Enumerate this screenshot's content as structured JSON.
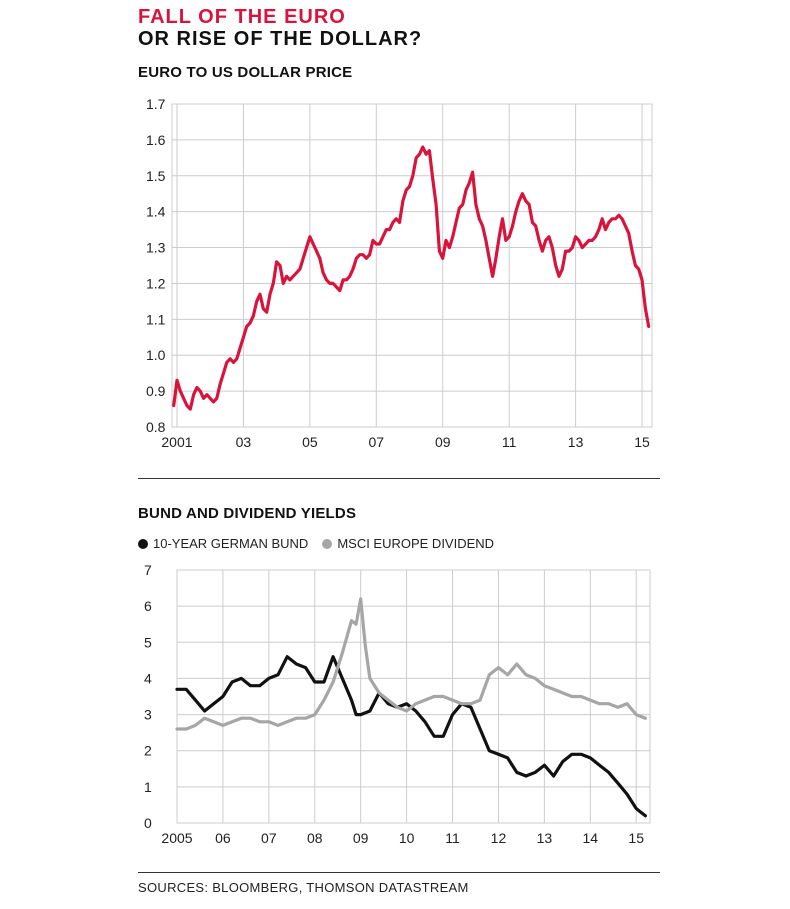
{
  "header": {
    "title_line1": "FALL OF THE EURO",
    "title_line2": "OR RISE OF THE DOLLAR?"
  },
  "sources": "SOURCES: BLOOMBERG, THOMSON DATASTREAM",
  "colors": {
    "euro_line": "#d9143c",
    "bund_line": "#111111",
    "dividend_line": "#a6a6a6",
    "grid": "#cccccc"
  },
  "chart_data": [
    {
      "type": "line",
      "title": "EURO TO US DOLLAR PRICE",
      "xlabel": "",
      "ylabel": "",
      "ylim": [
        0.8,
        1.7
      ],
      "xlim": [
        2000.85,
        2015.3
      ],
      "yticks": [
        "1.7",
        "1.6",
        "1.5",
        "1.4",
        "1.3",
        "1.2",
        "1.1",
        "1.0",
        "0.9",
        "0.8"
      ],
      "xticks": [
        {
          "x": 2001,
          "label": "2001"
        },
        {
          "x": 2003,
          "label": "03"
        },
        {
          "x": 2005,
          "label": "05"
        },
        {
          "x": 2007,
          "label": "07"
        },
        {
          "x": 2009,
          "label": "09"
        },
        {
          "x": 2011,
          "label": "11"
        },
        {
          "x": 2013,
          "label": "13"
        },
        {
          "x": 2015,
          "label": "15"
        }
      ],
      "grid": true,
      "series": [
        {
          "x": [
            2000.9,
            2001.0,
            2001.1,
            2001.2,
            2001.3,
            2001.4,
            2001.5,
            2001.6,
            2001.7,
            2001.8,
            2001.9,
            2002.0,
            2002.1,
            2002.2,
            2002.3,
            2002.4,
            2002.5,
            2002.6,
            2002.7,
            2002.8,
            2002.9,
            2003.0,
            2003.1,
            2003.2,
            2003.3,
            2003.4,
            2003.5,
            2003.6,
            2003.7,
            2003.8,
            2003.9,
            2004.0,
            2004.1,
            2004.2,
            2004.3,
            2004.4,
            2004.5,
            2004.6,
            2004.7,
            2004.8,
            2004.9,
            2005.0,
            2005.1,
            2005.2,
            2005.3,
            2005.4,
            2005.5,
            2005.6,
            2005.7,
            2005.8,
            2005.9,
            2006.0,
            2006.1,
            2006.2,
            2006.3,
            2006.4,
            2006.5,
            2006.6,
            2006.7,
            2006.8,
            2006.9,
            2007.0,
            2007.1,
            2007.2,
            2007.3,
            2007.4,
            2007.5,
            2007.6,
            2007.7,
            2007.8,
            2007.9,
            2008.0,
            2008.1,
            2008.2,
            2008.3,
            2008.4,
            2008.5,
            2008.6,
            2008.7,
            2008.8,
            2008.9,
            2009.0,
            2009.1,
            2009.2,
            2009.3,
            2009.4,
            2009.5,
            2009.6,
            2009.7,
            2009.8,
            2009.9,
            2010.0,
            2010.1,
            2010.2,
            2010.3,
            2010.4,
            2010.5,
            2010.6,
            2010.7,
            2010.8,
            2010.9,
            2011.0,
            2011.1,
            2011.2,
            2011.3,
            2011.4,
            2011.5,
            2011.6,
            2011.7,
            2011.8,
            2011.9,
            2012.0,
            2012.1,
            2012.2,
            2012.3,
            2012.4,
            2012.5,
            2012.6,
            2012.7,
            2012.8,
            2012.9,
            2013.0,
            2013.1,
            2013.2,
            2013.3,
            2013.4,
            2013.5,
            2013.6,
            2013.7,
            2013.8,
            2013.9,
            2014.0,
            2014.1,
            2014.2,
            2014.3,
            2014.4,
            2014.5,
            2014.6,
            2014.7,
            2014.8,
            2014.9,
            2015.0,
            2015.1,
            2015.2
          ],
          "values": [
            0.86,
            0.93,
            0.9,
            0.88,
            0.86,
            0.85,
            0.89,
            0.91,
            0.9,
            0.88,
            0.89,
            0.88,
            0.87,
            0.88,
            0.92,
            0.95,
            0.98,
            0.99,
            0.98,
            0.99,
            1.02,
            1.05,
            1.08,
            1.09,
            1.11,
            1.15,
            1.17,
            1.13,
            1.12,
            1.17,
            1.2,
            1.26,
            1.25,
            1.2,
            1.22,
            1.21,
            1.22,
            1.23,
            1.24,
            1.27,
            1.3,
            1.33,
            1.31,
            1.29,
            1.27,
            1.23,
            1.21,
            1.2,
            1.2,
            1.19,
            1.18,
            1.21,
            1.21,
            1.22,
            1.24,
            1.27,
            1.28,
            1.28,
            1.27,
            1.28,
            1.32,
            1.31,
            1.31,
            1.33,
            1.35,
            1.35,
            1.37,
            1.38,
            1.37,
            1.43,
            1.46,
            1.47,
            1.5,
            1.55,
            1.56,
            1.58,
            1.56,
            1.57,
            1.49,
            1.42,
            1.29,
            1.27,
            1.32,
            1.3,
            1.33,
            1.37,
            1.41,
            1.42,
            1.46,
            1.48,
            1.51,
            1.42,
            1.38,
            1.36,
            1.32,
            1.27,
            1.22,
            1.27,
            1.33,
            1.38,
            1.32,
            1.33,
            1.36,
            1.4,
            1.43,
            1.45,
            1.43,
            1.42,
            1.37,
            1.36,
            1.32,
            1.29,
            1.32,
            1.33,
            1.3,
            1.25,
            1.22,
            1.24,
            1.29,
            1.29,
            1.3,
            1.33,
            1.32,
            1.3,
            1.31,
            1.32,
            1.32,
            1.33,
            1.35,
            1.38,
            1.35,
            1.37,
            1.38,
            1.38,
            1.39,
            1.38,
            1.36,
            1.34,
            1.29,
            1.25,
            1.24,
            1.21,
            1.13,
            1.08
          ]
        }
      ]
    },
    {
      "type": "line",
      "title": "BUND AND DIVIDEND YIELDS",
      "xlabel": "",
      "ylabel": "",
      "ylim": [
        0,
        7
      ],
      "xlim": [
        2005,
        2015.3
      ],
      "yticks": [
        "7",
        "6",
        "5",
        "4",
        "3",
        "2",
        "1",
        "0"
      ],
      "xticks": [
        {
          "x": 2005,
          "label": "2005"
        },
        {
          "x": 2006,
          "label": "06"
        },
        {
          "x": 2007,
          "label": "07"
        },
        {
          "x": 2008,
          "label": "08"
        },
        {
          "x": 2009,
          "label": "09"
        },
        {
          "x": 2010,
          "label": "10"
        },
        {
          "x": 2011,
          "label": "11"
        },
        {
          "x": 2012,
          "label": "12"
        },
        {
          "x": 2013,
          "label": "13"
        },
        {
          "x": 2014,
          "label": "14"
        },
        {
          "x": 2015,
          "label": "15"
        }
      ],
      "grid": true,
      "legend": "top-left",
      "series": [
        {
          "name": "10-YEAR GERMAN BUND",
          "x": [
            2005.0,
            2005.2,
            2005.4,
            2005.6,
            2005.8,
            2006.0,
            2006.2,
            2006.4,
            2006.6,
            2006.8,
            2007.0,
            2007.2,
            2007.4,
            2007.6,
            2007.8,
            2008.0,
            2008.2,
            2008.4,
            2008.6,
            2008.8,
            2008.9,
            2009.0,
            2009.2,
            2009.4,
            2009.6,
            2009.8,
            2010.0,
            2010.2,
            2010.4,
            2010.6,
            2010.8,
            2011.0,
            2011.2,
            2011.4,
            2011.6,
            2011.8,
            2012.0,
            2012.2,
            2012.4,
            2012.6,
            2012.8,
            2013.0,
            2013.2,
            2013.4,
            2013.6,
            2013.8,
            2014.0,
            2014.2,
            2014.4,
            2014.6,
            2014.8,
            2015.0,
            2015.1,
            2015.2
          ],
          "values": [
            3.7,
            3.7,
            3.4,
            3.1,
            3.3,
            3.5,
            3.9,
            4.0,
            3.8,
            3.8,
            4.0,
            4.1,
            4.6,
            4.4,
            4.3,
            3.9,
            3.9,
            4.6,
            4.0,
            3.4,
            3.0,
            3.0,
            3.1,
            3.6,
            3.3,
            3.2,
            3.3,
            3.1,
            2.8,
            2.4,
            2.4,
            3.0,
            3.3,
            3.2,
            2.6,
            2.0,
            1.9,
            1.8,
            1.4,
            1.3,
            1.4,
            1.6,
            1.3,
            1.7,
            1.9,
            1.9,
            1.8,
            1.6,
            1.4,
            1.1,
            0.8,
            0.4,
            0.3,
            0.2
          ]
        },
        {
          "name": "MSCI EUROPE DIVIDEND",
          "x": [
            2005.0,
            2005.2,
            2005.4,
            2005.6,
            2005.8,
            2006.0,
            2006.2,
            2006.4,
            2006.6,
            2006.8,
            2007.0,
            2007.2,
            2007.4,
            2007.6,
            2007.8,
            2008.0,
            2008.2,
            2008.4,
            2008.6,
            2008.8,
            2008.9,
            2009.0,
            2009.1,
            2009.2,
            2009.4,
            2009.6,
            2009.8,
            2010.0,
            2010.2,
            2010.4,
            2010.6,
            2010.8,
            2011.0,
            2011.2,
            2011.4,
            2011.6,
            2011.8,
            2012.0,
            2012.2,
            2012.4,
            2012.6,
            2012.8,
            2013.0,
            2013.2,
            2013.4,
            2013.6,
            2013.8,
            2014.0,
            2014.2,
            2014.4,
            2014.6,
            2014.8,
            2015.0,
            2015.2
          ],
          "values": [
            2.6,
            2.6,
            2.7,
            2.9,
            2.8,
            2.7,
            2.8,
            2.9,
            2.9,
            2.8,
            2.8,
            2.7,
            2.8,
            2.9,
            2.9,
            3.0,
            3.4,
            3.9,
            4.7,
            5.6,
            5.5,
            6.2,
            4.9,
            4.0,
            3.6,
            3.4,
            3.2,
            3.1,
            3.3,
            3.4,
            3.5,
            3.5,
            3.4,
            3.3,
            3.3,
            3.4,
            4.1,
            4.3,
            4.1,
            4.4,
            4.1,
            4.0,
            3.8,
            3.7,
            3.6,
            3.5,
            3.5,
            3.4,
            3.3,
            3.3,
            3.2,
            3.3,
            3.0,
            2.9
          ]
        }
      ]
    }
  ]
}
